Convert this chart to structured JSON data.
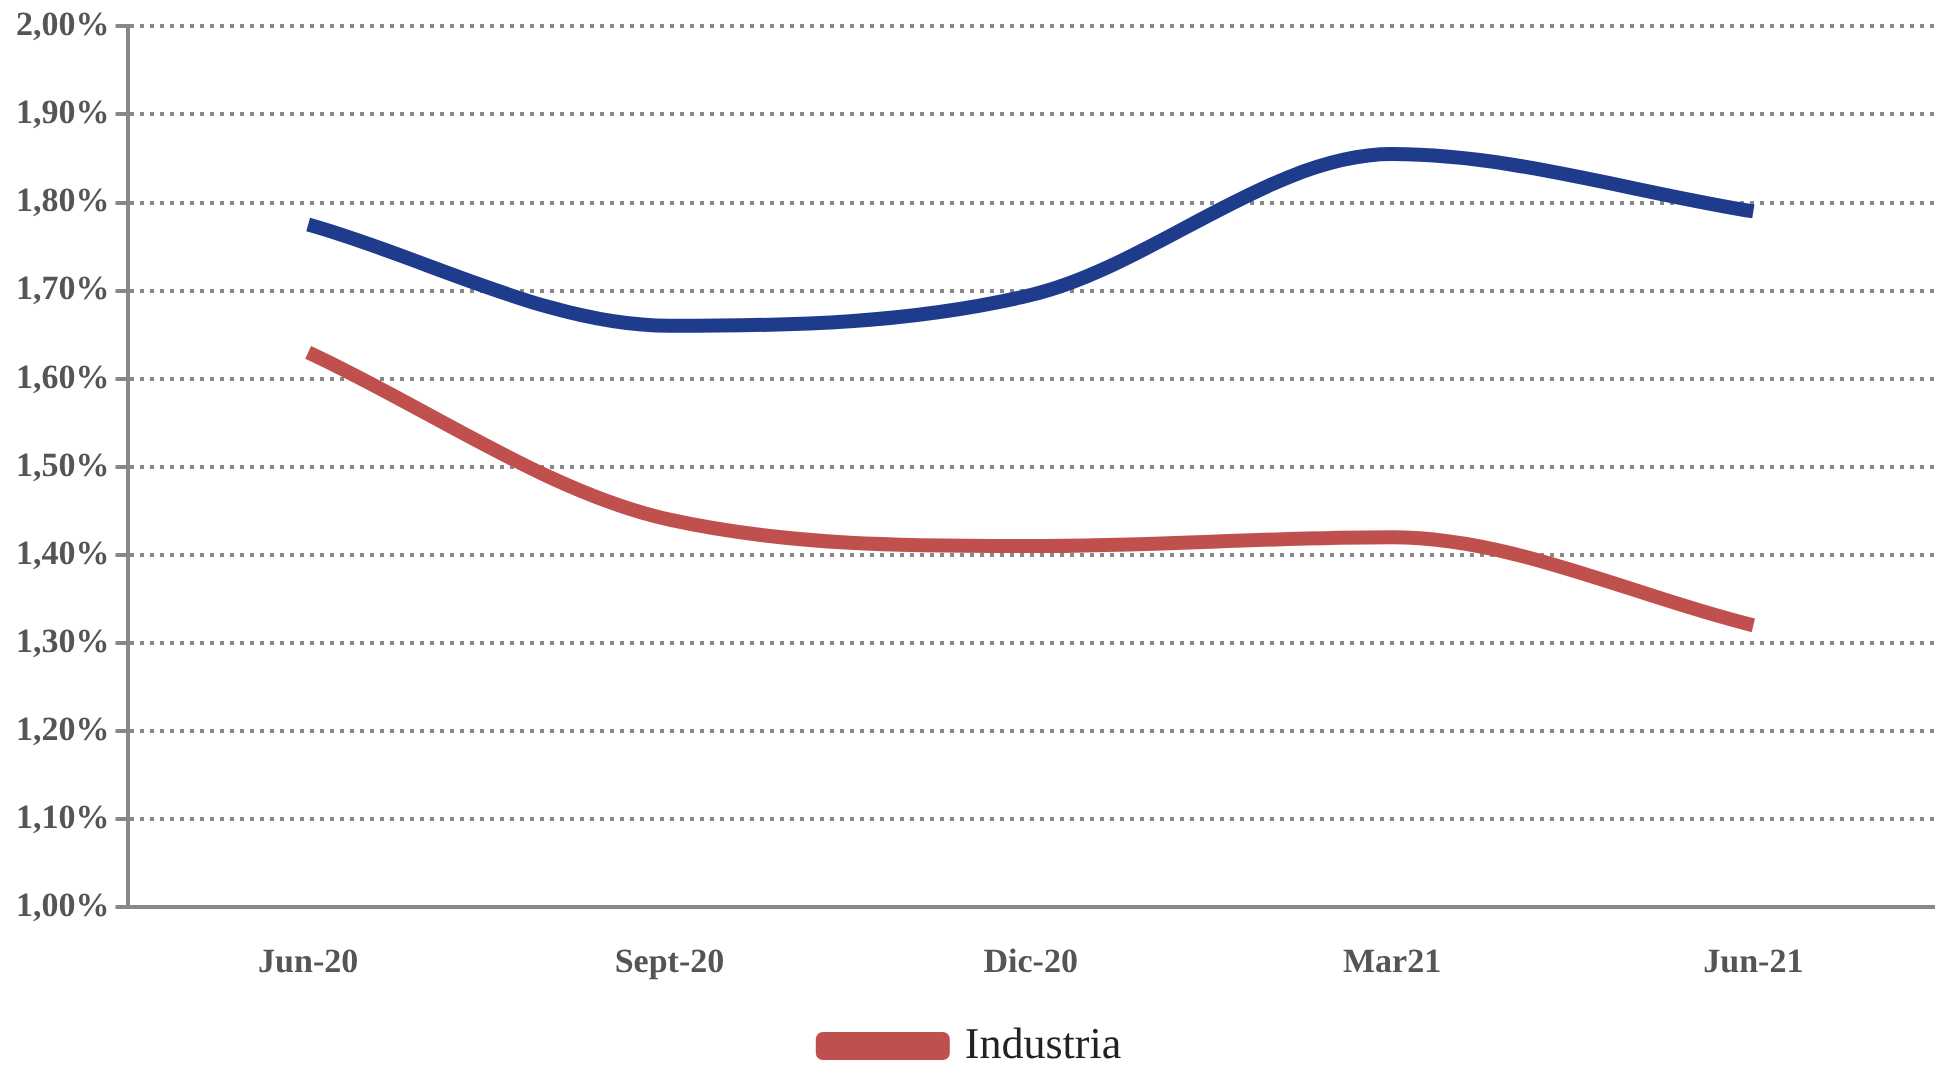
{
  "chart_data": {
    "type": "line",
    "categories": [
      "Jun-20",
      "Sept-20",
      "Dic-20",
      "Mar21",
      "Jun-21"
    ],
    "series": [
      {
        "color": "#1f3c8c",
        "values": [
          1.775,
          1.66,
          1.695,
          1.855,
          1.79
        ]
      },
      {
        "name": "Industria",
        "color": "#c0504d",
        "values": [
          1.63,
          1.44,
          1.41,
          1.42,
          1.32
        ]
      }
    ],
    "ylim": [
      1.0,
      2.0
    ],
    "yticks": [
      {
        "value": 1.0,
        "label": "1,00%"
      },
      {
        "value": 1.1,
        "label": "1,10%"
      },
      {
        "value": 1.2,
        "label": "1,20%"
      },
      {
        "value": 1.3,
        "label": "1,30%"
      },
      {
        "value": 1.4,
        "label": "1,40%"
      },
      {
        "value": 1.5,
        "label": "1,50%"
      },
      {
        "value": 1.6,
        "label": "1,60%"
      },
      {
        "value": 1.7,
        "label": "1,70%"
      },
      {
        "value": 1.8,
        "label": "1,80%"
      },
      {
        "value": 1.9,
        "label": "1,90%"
      },
      {
        "value": 2.0,
        "label": "2,00%"
      }
    ],
    "grid": "y",
    "legend": "bottom",
    "marker": "none",
    "line_style": "solid"
  }
}
